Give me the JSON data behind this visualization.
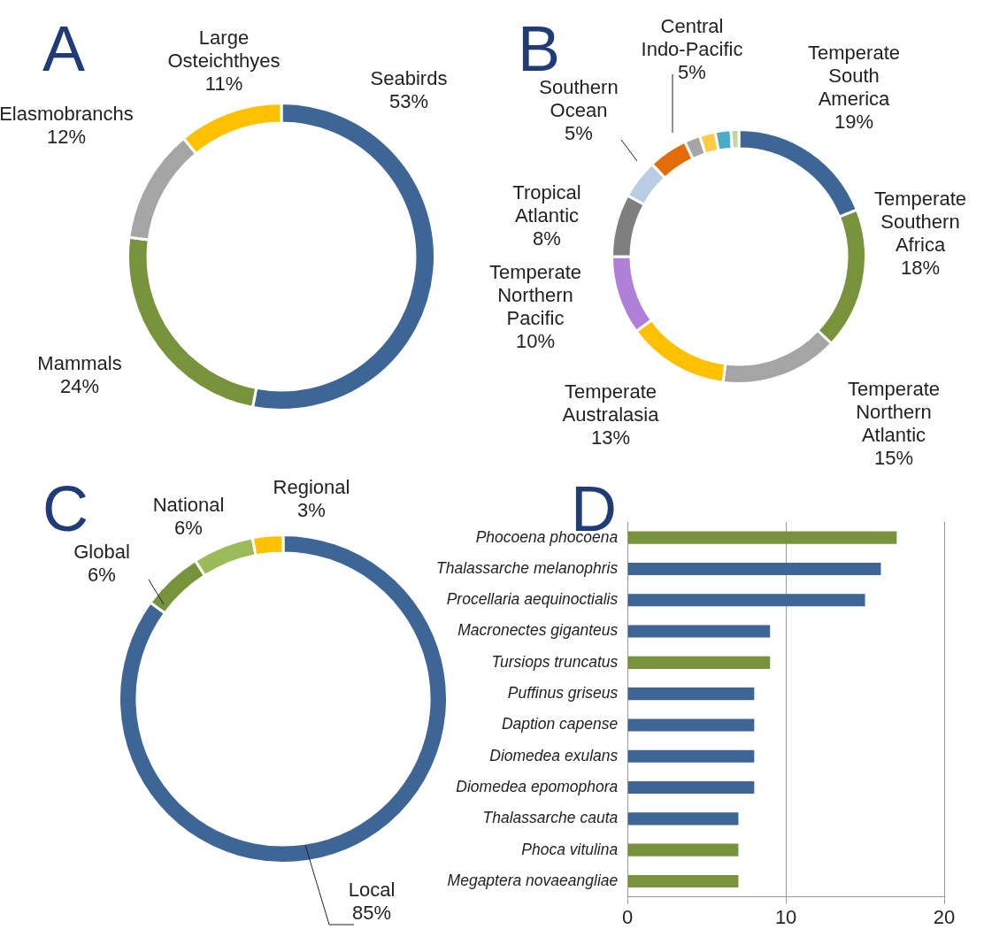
{
  "chart_data": [
    {
      "type": "donut",
      "title": "A",
      "categories": [
        "Seabirds",
        "Mammals",
        "Elasmobranchs",
        "Large Osteichthyes"
      ],
      "values": [
        53,
        24,
        12,
        11
      ],
      "value_labels": [
        "53%",
        "24%",
        "12%",
        "11%"
      ],
      "colors": [
        "#3d6596",
        "#77933c",
        "#a5a5a5",
        "#ffc000"
      ]
    },
    {
      "type": "donut",
      "title": "B",
      "categories": [
        "Temperate South America",
        "Temperate Southern Africa",
        "Temperate Northern Atlantic",
        "Temperate Australasia",
        "Temperate Northern Pacific",
        "Tropical Atlantic",
        "Southern Ocean",
        "Central Indo-Pacific",
        null,
        null,
        null,
        null
      ],
      "values": [
        19,
        18,
        15,
        13,
        10,
        8,
        5,
        5,
        2,
        2,
        2,
        1
      ],
      "value_labels": [
        "19%",
        "18%",
        "15%",
        "13%",
        "10%",
        "8%",
        "5%",
        "5%",
        null,
        null,
        null,
        null
      ],
      "colors": [
        "#3d6596",
        "#77933c",
        "#a5a5a5",
        "#ffc000",
        "#b07fd8",
        "#7f7f7f",
        "#b9cde5",
        "#e36c09",
        "#a5a5a5",
        "#ffcc44",
        "#4bacc6",
        "#c3d69b"
      ]
    },
    {
      "type": "donut",
      "title": "C",
      "categories": [
        "Local",
        "Global",
        "National",
        "Regional"
      ],
      "values": [
        85,
        6,
        6,
        3
      ],
      "value_labels": [
        "85%",
        "6%",
        "6%",
        "3%"
      ],
      "colors": [
        "#3d6596",
        "#77933c",
        "#9bbb59",
        "#ffc000"
      ]
    },
    {
      "type": "bar",
      "title": "D",
      "orientation": "horizontal",
      "categories": [
        "Phocoena phocoena",
        "Thalassarche melanophris",
        "Procellaria aequinoctialis",
        "Macronectes giganteus",
        "Tursiops truncatus",
        "Puffinus griseus",
        "Daption capense",
        "Diomedea exulans",
        "Diomedea epomophora",
        "Thalassarche cauta",
        "Phoca vitulina",
        "Megaptera novaeangliae"
      ],
      "values": [
        17,
        16,
        15,
        9,
        9,
        8,
        8,
        8,
        8,
        7,
        7,
        7
      ],
      "colors": [
        "#77933c",
        "#3d6596",
        "#3d6596",
        "#3d6596",
        "#77933c",
        "#3d6596",
        "#3d6596",
        "#3d6596",
        "#3d6596",
        "#3d6596",
        "#77933c",
        "#77933c"
      ],
      "xlim": [
        0,
        20
      ],
      "xticks": [
        0,
        10,
        20
      ],
      "grid": "x"
    }
  ]
}
